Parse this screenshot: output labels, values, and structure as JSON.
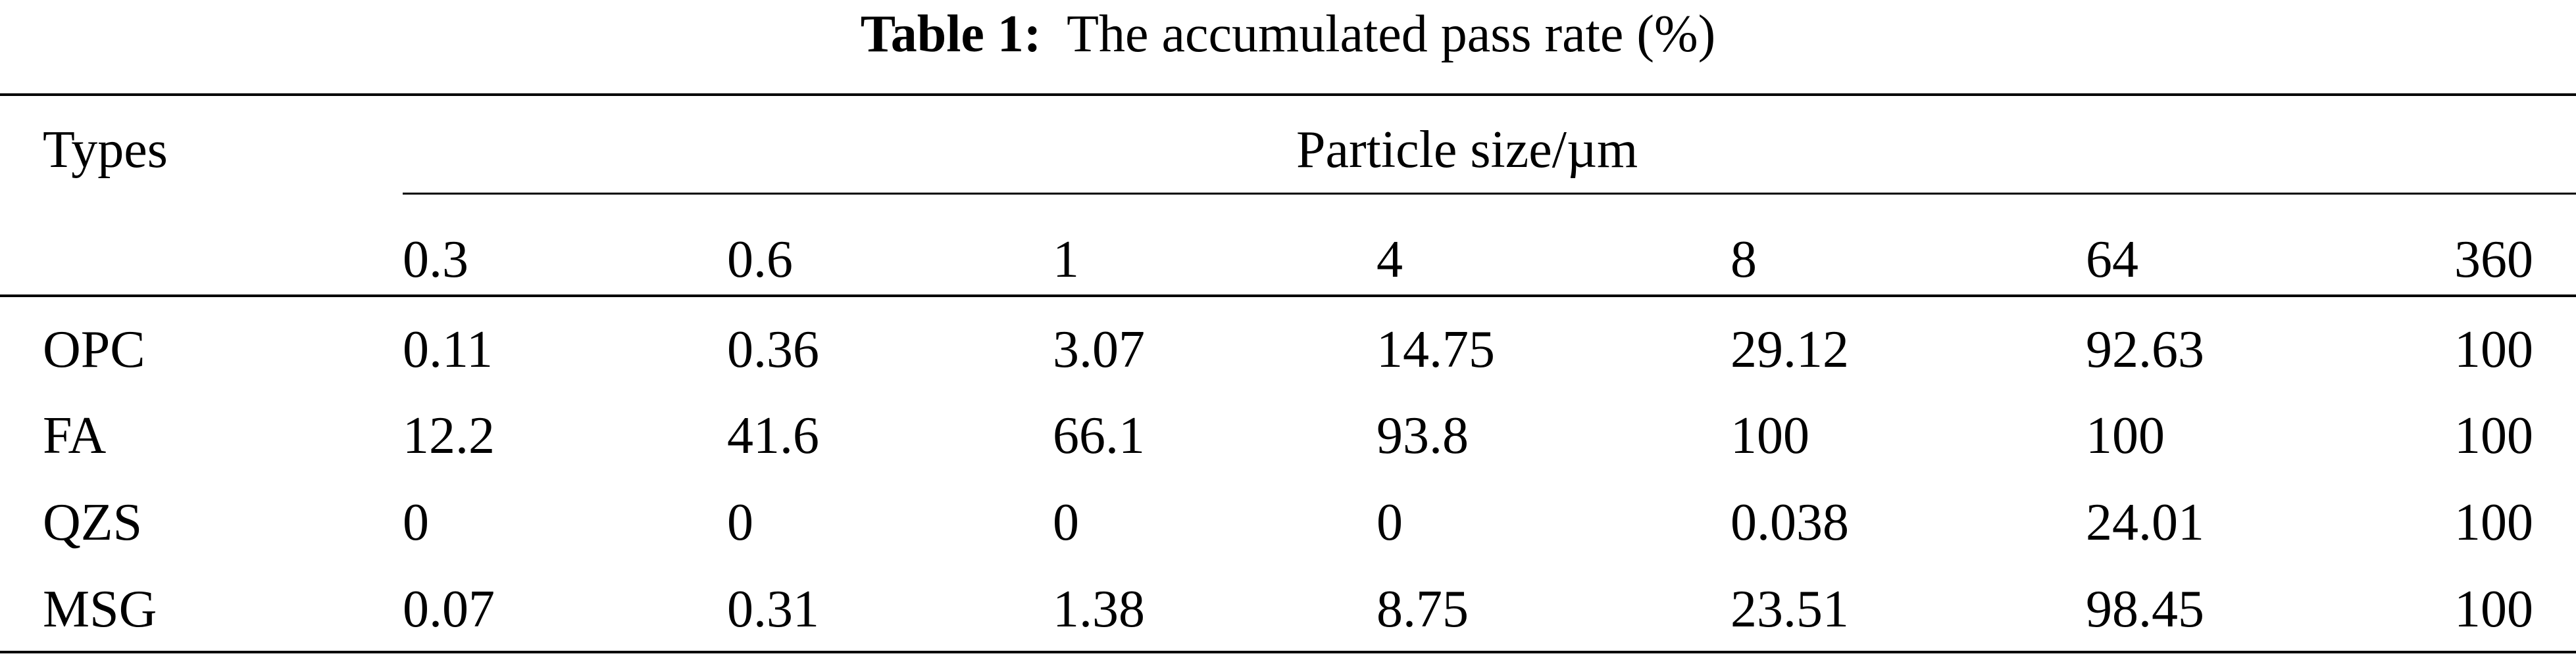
{
  "caption": {
    "label": "Table 1:",
    "text": "The accumulated pass rate (%)"
  },
  "table": {
    "row_header_title": "Types",
    "spanner": "Particle size/µm",
    "columns": [
      "0.3",
      "0.6",
      "1",
      "4",
      "8",
      "64",
      "360"
    ],
    "rows": [
      {
        "type": "OPC",
        "values": [
          "0.11",
          "0.36",
          "3.07",
          "14.75",
          "29.12",
          "92.63",
          "100"
        ]
      },
      {
        "type": "FA",
        "values": [
          "12.2",
          "41.6",
          "66.1",
          "93.8",
          "100",
          "100",
          "100"
        ]
      },
      {
        "type": "QZS",
        "values": [
          "0",
          "0",
          "0",
          "0",
          "0.038",
          "24.01",
          "100"
        ]
      },
      {
        "type": "MSG",
        "values": [
          "0.07",
          "0.31",
          "1.38",
          "8.75",
          "23.51",
          "98.45",
          "100"
        ]
      }
    ]
  }
}
